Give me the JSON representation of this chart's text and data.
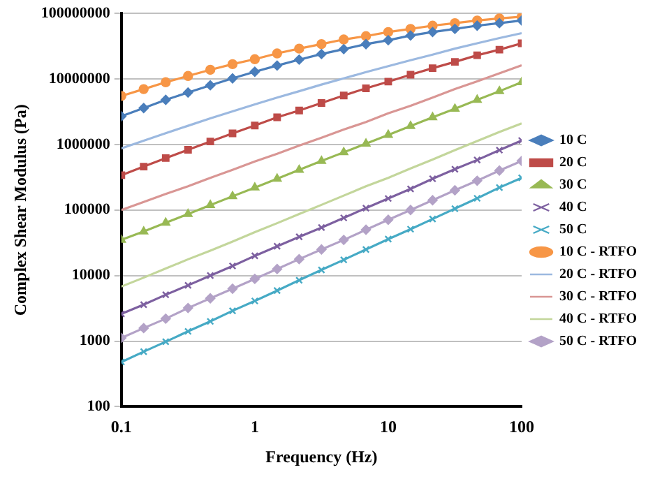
{
  "chart_data": {
    "type": "line",
    "xlabel": "Frequency (Hz)",
    "ylabel": "Complex Shear Modulus (Pa)",
    "log": "xy",
    "grid": "y",
    "legend": "right",
    "x": [
      0.1,
      0.147,
      0.215,
      0.316,
      0.464,
      0.681,
      1,
      1.47,
      2.15,
      3.16,
      4.64,
      6.81,
      10,
      14.7,
      21.5,
      31.6,
      46.4,
      68.1,
      100
    ],
    "xlim": [
      0.1,
      100
    ],
    "xticks": [
      0.1,
      1,
      10,
      100
    ],
    "ylim": [
      100,
      100000000
    ],
    "yticks": [
      100,
      1000,
      10000,
      100000,
      1000000,
      10000000,
      100000000
    ],
    "series": [
      {
        "name": "10 C",
        "color": "#4a7ebb",
        "marker": "diamond",
        "values": [
          2700000,
          3600000,
          4800000,
          6200000,
          8000000,
          10200000,
          12900000,
          16000000,
          19700000,
          24000000,
          28500000,
          34000000,
          39000000,
          46000000,
          52000000,
          58000000,
          65000000,
          71000000,
          78000000
        ]
      },
      {
        "name": "20 C",
        "color": "#be4b48",
        "marker": "square",
        "values": [
          340000,
          460000,
          620000,
          830000,
          1110000,
          1480000,
          1950000,
          2600000,
          3300000,
          4300000,
          5600000,
          7200000,
          9100000,
          11600000,
          14600000,
          18200000,
          23000000,
          28000000,
          35000000
        ]
      },
      {
        "name": "30 C",
        "color": "#98b954",
        "marker": "triangle",
        "values": [
          35000,
          47000,
          64000,
          87000,
          119000,
          162000,
          220000,
          300000,
          410000,
          560000,
          760000,
          1030000,
          1400000,
          1910000,
          2600000,
          3500000,
          4800000,
          6500000,
          8900000
        ]
      },
      {
        "name": "40 C",
        "color": "#7d60a0",
        "marker": "cross",
        "values": [
          2600,
          3600,
          5100,
          7100,
          10000,
          14000,
          20000,
          28000,
          39000,
          54000,
          76000,
          107000,
          150000,
          210000,
          300000,
          420000,
          580000,
          820000,
          1150000
        ]
      },
      {
        "name": "50 C",
        "color": "#46aac5",
        "marker": "cross",
        "values": [
          480,
          690,
          980,
          1410,
          2000,
          2900,
          4100,
          5900,
          8500,
          12200,
          17400,
          25000,
          36000,
          51000,
          73000,
          105000,
          151000,
          220000,
          310000
        ]
      },
      {
        "name": "10 C - RTFO",
        "color": "#f79646",
        "marker": "circle",
        "values": [
          5500000,
          7000000,
          8900000,
          11100000,
          13800000,
          16800000,
          20000000,
          24500000,
          29000000,
          34000000,
          40000000,
          45000000,
          52000000,
          58000000,
          65000000,
          71000000,
          78000000,
          84000000,
          89000000
        ]
      },
      {
        "name": "20 C - RTFO",
        "color": "#9cb9e0",
        "marker": "none",
        "values": [
          870000,
          1140000,
          1490000,
          1930000,
          2500000,
          3200000,
          4100000,
          5200000,
          6500000,
          8200000,
          10200000,
          12700000,
          15700000,
          19300000,
          23500000,
          29000000,
          35000000,
          42000000,
          50000000
        ]
      },
      {
        "name": "30 C - RTFO",
        "color": "#d99694",
        "marker": "none",
        "values": [
          100000,
          133000,
          176000,
          230000,
          310000,
          410000,
          550000,
          720000,
          960000,
          1270000,
          1690000,
          2200000,
          3000000,
          3900000,
          5200000,
          7000000,
          9200000,
          12200000,
          16200000
        ]
      },
      {
        "name": "40 C - RTFO",
        "color": "#c3d69b",
        "marker": "none",
        "values": [
          6800,
          9300,
          12800,
          17700,
          24000,
          33000,
          46000,
          63000,
          87000,
          120000,
          166000,
          230000,
          310000,
          430000,
          590000,
          820000,
          1130000,
          1550000,
          2100000
        ]
      },
      {
        "name": "50 C - RTFO",
        "color": "#b3a2c7",
        "marker": "diamond",
        "values": [
          1120,
          1580,
          2200,
          3200,
          4500,
          6300,
          8900,
          12600,
          17800,
          25000,
          35000,
          50000,
          71000,
          100000,
          141000,
          200000,
          280000,
          400000,
          560000
        ]
      }
    ]
  }
}
